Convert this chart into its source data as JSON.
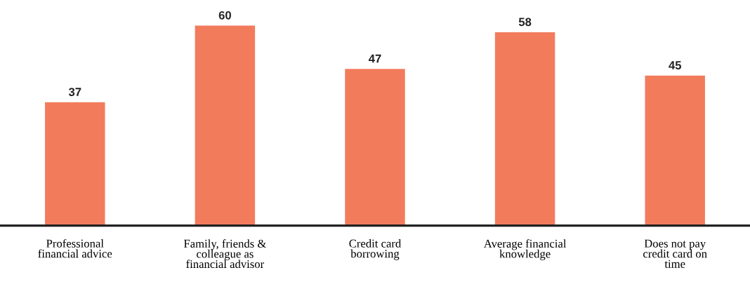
{
  "chart_data": {
    "type": "bar",
    "categories": [
      "Professional\nfinancial advice",
      "Family, friends &\ncolleague as\nfinancial advisor",
      "Credit card\nborrowing",
      "Average financial\nknowledge",
      "Does not pay\ncredit card on\ntime"
    ],
    "values": [
      37,
      60,
      47,
      58,
      45
    ],
    "color": "#f27b5c",
    "data_labels": true,
    "grid": false,
    "legend": false
  }
}
